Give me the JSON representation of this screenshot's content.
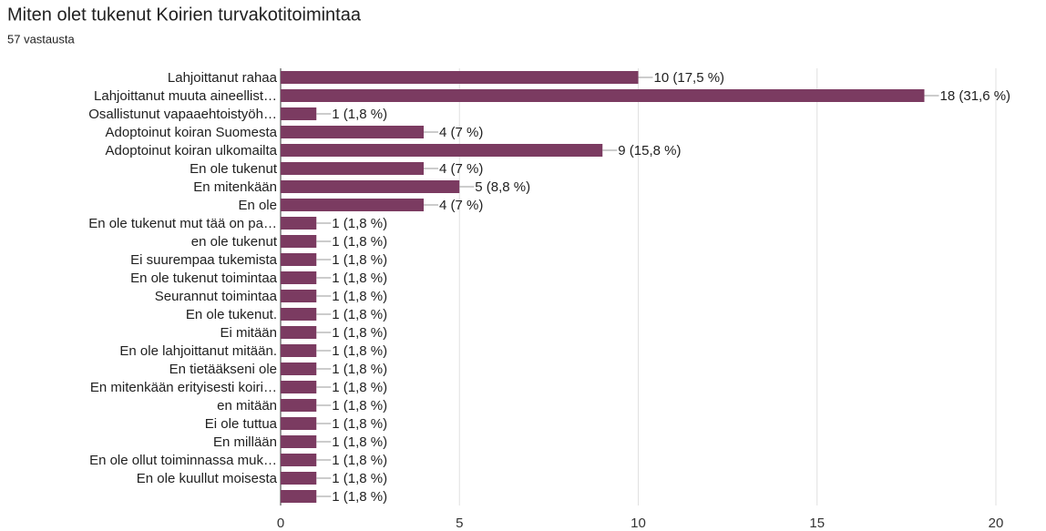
{
  "chart_data": {
    "type": "bar",
    "orientation": "horizontal",
    "title": "Miten olet tukenut Koirien turvakotitoimintaa",
    "subtitle": "57 vastausta",
    "categories": [
      "Lahjoittanut rahaa",
      "Lahjoittanut muuta aineellist…",
      "Osallistunut vapaaehtoistyöh…",
      "Adoptoinut koiran Suomesta",
      "Adoptoinut koiran ulkomailta",
      "En ole tukenut",
      "En mitenkään",
      "En ole",
      "En ole tukenut mut tää on pa…",
      "en ole tukenut",
      "Ei suurempaa tukemista",
      "En ole tukenut toimintaa",
      "Seurannut toimintaa",
      "En ole tukenut.",
      "Ei mitään",
      "En ole lahjoittanut mitään.",
      "En tietääkseni ole",
      "En mitenkään erityisesti koiri…",
      "en mitään",
      "Ei ole tuttua",
      "En millään",
      "En ole ollut toiminnassa muk…",
      "En ole kuullut moisesta",
      null
    ],
    "values": [
      10,
      18,
      1,
      4,
      9,
      4,
      5,
      4,
      1,
      1,
      1,
      1,
      1,
      1,
      1,
      1,
      1,
      1,
      1,
      1,
      1,
      1,
      1,
      1
    ],
    "value_labels": [
      "10 (17,5 %)",
      "18 (31,6 %)",
      "1 (1,8 %)",
      "4 (7 %)",
      "9 (15,8 %)",
      "4 (7 %)",
      "5 (8,8 %)",
      "4 (7 %)",
      "1 (1,8 %)",
      "1 (1,8 %)",
      "1 (1,8 %)",
      "1 (1,8 %)",
      "1 (1,8 %)",
      "1 (1,8 %)",
      "1 (1,8 %)",
      "1 (1,8 %)",
      "1 (1,8 %)",
      "1 (1,8 %)",
      "1 (1,8 %)",
      "1 (1,8 %)",
      "1 (1,8 %)",
      "1 (1,8 %)",
      "1 (1,8 %)",
      "1 (1,8 %)"
    ],
    "color": "#7b3b61",
    "xlim": [
      0,
      20
    ],
    "xticks": [
      0,
      5,
      10,
      15,
      20
    ],
    "grid": true
  }
}
